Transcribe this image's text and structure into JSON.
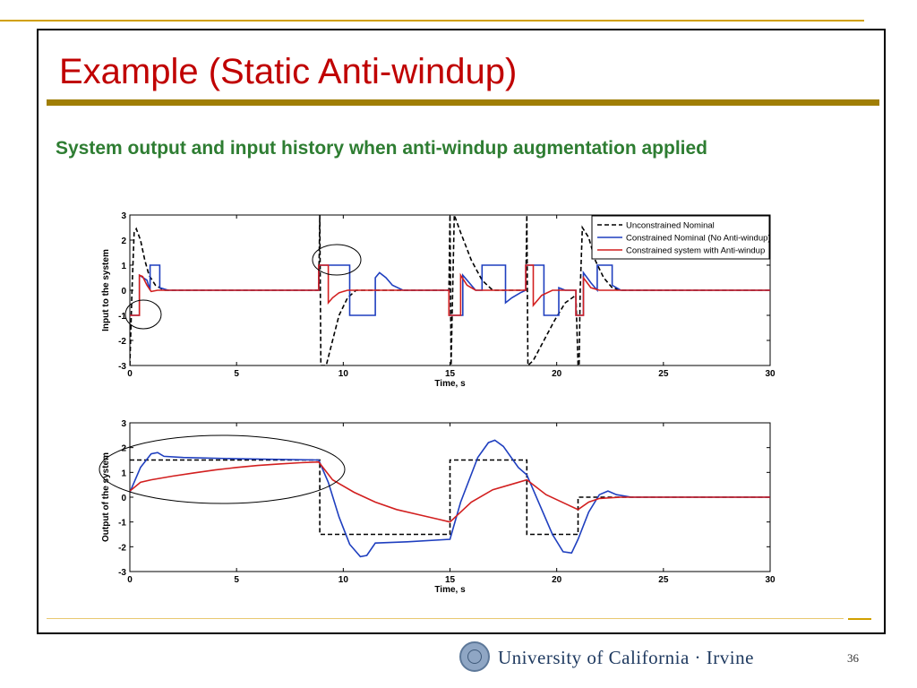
{
  "slide": {
    "title": "Example (Static Anti-windup)",
    "subtitle": "System output and input history when anti-windup augmentation applied",
    "page_number": "36",
    "logo_text": "University of California · Irvine",
    "colors": {
      "title": "#c00000",
      "subtitle": "#2e7d32",
      "rule": "#a07e05",
      "logo": "#1f3a60"
    }
  },
  "chart_data": [
    {
      "type": "line",
      "xlabel": "Time, s",
      "ylabel": "Input to the system",
      "xlim": [
        0,
        30
      ],
      "ylim": [
        -3,
        3
      ],
      "xticks": [
        0,
        5,
        10,
        15,
        20,
        25,
        30
      ],
      "yticks": [
        -3,
        -2,
        -1,
        0,
        1,
        2,
        3
      ],
      "legend": {
        "position": "top-right",
        "entries": [
          "Unconstrained Nominal",
          "Constrained Nominal (No Anti-windup)",
          "Constrained system with Anti-windup"
        ]
      },
      "series": [
        {
          "name": "Unconstrained Nominal",
          "color": "#000000",
          "style": "dashed",
          "points": [
            [
              0,
              -3
            ],
            [
              0.1,
              0
            ],
            [
              0.2,
              2.3
            ],
            [
              0.3,
              2.45
            ],
            [
              0.5,
              2
            ],
            [
              0.7,
              1.2
            ],
            [
              0.9,
              0.6
            ],
            [
              1.2,
              0.2
            ],
            [
              1.6,
              0
            ],
            [
              2,
              0
            ],
            [
              8.85,
              0
            ],
            [
              8.9,
              3
            ],
            [
              8.95,
              -3
            ],
            [
              9.2,
              -3
            ],
            [
              9.5,
              -2
            ],
            [
              9.8,
              -1
            ],
            [
              10.2,
              -0.3
            ],
            [
              10.6,
              0
            ],
            [
              11,
              0
            ],
            [
              14.95,
              0
            ],
            [
              15,
              3
            ],
            [
              15.05,
              -3
            ],
            [
              15.2,
              3
            ],
            [
              15.5,
              2.3
            ],
            [
              16,
              1.2
            ],
            [
              16.5,
              0.4
            ],
            [
              17,
              0
            ],
            [
              18.55,
              0
            ],
            [
              18.6,
              3
            ],
            [
              18.65,
              -3
            ],
            [
              18.9,
              -2.8
            ],
            [
              19.4,
              -2
            ],
            [
              19.9,
              -1.2
            ],
            [
              20.4,
              -0.5
            ],
            [
              20.9,
              -0.2
            ],
            [
              21.0,
              -3
            ],
            [
              21.05,
              -3
            ],
            [
              21.1,
              0
            ],
            [
              21.2,
              2.5
            ],
            [
              21.5,
              2.1
            ],
            [
              21.8,
              1.2
            ],
            [
              22.2,
              0.5
            ],
            [
              22.6,
              0.1
            ],
            [
              23,
              0
            ],
            [
              30,
              0
            ]
          ]
        },
        {
          "name": "Constrained Nominal (No Anti-windup)",
          "color": "#1f3fbf",
          "style": "solid",
          "points": [
            [
              0,
              -1
            ],
            [
              0.45,
              -1
            ],
            [
              0.45,
              0.6
            ],
            [
              0.8,
              0.4
            ],
            [
              0.95,
              0
            ],
            [
              0.95,
              1
            ],
            [
              1.4,
              1
            ],
            [
              1.4,
              0.1
            ],
            [
              1.8,
              0
            ],
            [
              8.85,
              0
            ],
            [
              8.85,
              1
            ],
            [
              10.3,
              1
            ],
            [
              10.3,
              -1
            ],
            [
              11.5,
              -1
            ],
            [
              11.5,
              0.5
            ],
            [
              11.7,
              0.7
            ],
            [
              12,
              0.5
            ],
            [
              12.3,
              0.2
            ],
            [
              12.8,
              0
            ],
            [
              14.95,
              0
            ],
            [
              14.95,
              -1
            ],
            [
              15.6,
              -1
            ],
            [
              15.6,
              0.6
            ],
            [
              16.2,
              0
            ],
            [
              16.5,
              0
            ],
            [
              16.5,
              1
            ],
            [
              17.6,
              1
            ],
            [
              17.6,
              -0.5
            ],
            [
              17.9,
              -0.3
            ],
            [
              18.3,
              -0.1
            ],
            [
              18.55,
              0
            ],
            [
              18.55,
              1
            ],
            [
              19.4,
              1
            ],
            [
              19.4,
              -1
            ],
            [
              20.1,
              -1
            ],
            [
              20.1,
              0.1
            ],
            [
              20.4,
              0
            ],
            [
              20.9,
              0
            ],
            [
              20.9,
              -1
            ],
            [
              21.25,
              -1
            ],
            [
              21.25,
              0.7
            ],
            [
              21.6,
              0.3
            ],
            [
              21.9,
              0
            ],
            [
              21.9,
              1
            ],
            [
              22.6,
              1
            ],
            [
              22.6,
              0.2
            ],
            [
              23,
              0
            ],
            [
              30,
              0
            ]
          ]
        },
        {
          "name": "Constrained system with Anti-windup",
          "color": "#d21f1f",
          "style": "solid",
          "points": [
            [
              0,
              -1
            ],
            [
              0.45,
              -1
            ],
            [
              0.45,
              0.6
            ],
            [
              0.6,
              0.55
            ],
            [
              0.8,
              0.2
            ],
            [
              1,
              -0.05
            ],
            [
              1.3,
              0
            ],
            [
              8.85,
              0
            ],
            [
              8.85,
              1
            ],
            [
              9.3,
              1
            ],
            [
              9.3,
              -0.5
            ],
            [
              9.5,
              -0.3
            ],
            [
              9.8,
              -0.1
            ],
            [
              10.2,
              0
            ],
            [
              14.95,
              0
            ],
            [
              14.95,
              -1
            ],
            [
              15.5,
              -1
            ],
            [
              15.5,
              0.6
            ],
            [
              15.8,
              0.2
            ],
            [
              16.2,
              0
            ],
            [
              18.55,
              0
            ],
            [
              18.55,
              1
            ],
            [
              18.9,
              1
            ],
            [
              18.9,
              -0.6
            ],
            [
              19.3,
              -0.2
            ],
            [
              19.8,
              0
            ],
            [
              20.9,
              0
            ],
            [
              20.9,
              -1
            ],
            [
              21.25,
              -1
            ],
            [
              21.25,
              0.5
            ],
            [
              21.6,
              0.1
            ],
            [
              22,
              0
            ],
            [
              30,
              0
            ]
          ]
        }
      ],
      "annotations": [
        "ellipse around t≈1, y≈-1",
        "ellipse around t≈9.5, y≈1.3"
      ]
    },
    {
      "type": "line",
      "xlabel": "Time, s",
      "ylabel": "Output of the system",
      "xlim": [
        0,
        30
      ],
      "ylim": [
        -3,
        3
      ],
      "xticks": [
        0,
        5,
        10,
        15,
        20,
        25,
        30
      ],
      "yticks": [
        -3,
        -2,
        -1,
        0,
        1,
        2,
        3
      ],
      "series": [
        {
          "name": "Unconstrained Nominal",
          "color": "#000000",
          "style": "dashed",
          "points": [
            [
              0,
              1.5
            ],
            [
              8.9,
              1.5
            ],
            [
              8.9,
              -1.5
            ],
            [
              15,
              -1.5
            ],
            [
              15,
              1.5
            ],
            [
              18.6,
              1.5
            ],
            [
              18.6,
              -1.5
            ],
            [
              21,
              -1.5
            ],
            [
              21,
              0
            ],
            [
              30,
              0
            ]
          ]
        },
        {
          "name": "Constrained Nominal (No Anti-windup)",
          "color": "#1f3fbf",
          "style": "solid",
          "points": [
            [
              0,
              0.2
            ],
            [
              0.5,
              1.2
            ],
            [
              1,
              1.75
            ],
            [
              1.3,
              1.8
            ],
            [
              1.6,
              1.65
            ],
            [
              2.5,
              1.6
            ],
            [
              5,
              1.55
            ],
            [
              8.85,
              1.5
            ],
            [
              9.3,
              0.6
            ],
            [
              9.8,
              -0.8
            ],
            [
              10.3,
              -1.9
            ],
            [
              10.8,
              -2.4
            ],
            [
              11.1,
              -2.35
            ],
            [
              11.5,
              -1.85
            ],
            [
              13,
              -1.8
            ],
            [
              15,
              -1.7
            ],
            [
              15.5,
              -0.2
            ],
            [
              16.3,
              1.6
            ],
            [
              16.8,
              2.2
            ],
            [
              17.1,
              2.3
            ],
            [
              17.5,
              2.05
            ],
            [
              18.2,
              1.2
            ],
            [
              18.6,
              0.9
            ],
            [
              19.2,
              -0.3
            ],
            [
              19.8,
              -1.5
            ],
            [
              20.3,
              -2.2
            ],
            [
              20.7,
              -2.25
            ],
            [
              21,
              -1.7
            ],
            [
              21.5,
              -0.6
            ],
            [
              22,
              0.1
            ],
            [
              22.4,
              0.25
            ],
            [
              22.8,
              0.1
            ],
            [
              23.5,
              0
            ],
            [
              30,
              0
            ]
          ]
        },
        {
          "name": "Constrained system with Anti-windup",
          "color": "#d21f1f",
          "style": "solid",
          "points": [
            [
              0,
              0.25
            ],
            [
              0.5,
              0.6
            ],
            [
              1,
              0.7
            ],
            [
              2,
              0.85
            ],
            [
              3,
              0.98
            ],
            [
              4,
              1.1
            ],
            [
              5,
              1.2
            ],
            [
              6,
              1.28
            ],
            [
              7,
              1.34
            ],
            [
              8,
              1.39
            ],
            [
              8.85,
              1.42
            ],
            [
              9.5,
              0.7
            ],
            [
              10.5,
              0.2
            ],
            [
              11.5,
              -0.2
            ],
            [
              12.5,
              -0.5
            ],
            [
              13.5,
              -0.7
            ],
            [
              14.5,
              -0.9
            ],
            [
              15,
              -1.0
            ],
            [
              16,
              -0.2
            ],
            [
              17,
              0.3
            ],
            [
              18,
              0.55
            ],
            [
              18.6,
              0.7
            ],
            [
              19.5,
              0.1
            ],
            [
              20.5,
              -0.3
            ],
            [
              21,
              -0.5
            ],
            [
              21.5,
              -0.2
            ],
            [
              22,
              -0.05
            ],
            [
              23,
              0
            ],
            [
              30,
              0
            ]
          ]
        }
      ],
      "annotations": [
        "ellipse around t≈0–10, y≈1.2"
      ]
    }
  ]
}
